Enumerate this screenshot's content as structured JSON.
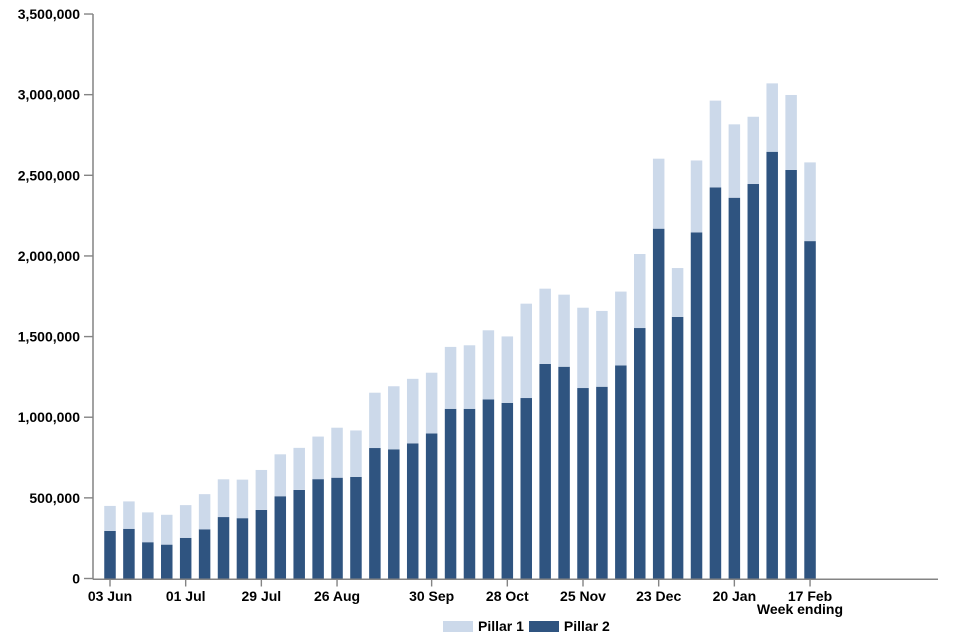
{
  "chart_data": {
    "type": "bar",
    "stacked": true,
    "title": "",
    "xlabel": "Week ending",
    "ylabel": "",
    "ylim": [
      0,
      3500000
    ],
    "y_tick_interval": 500000,
    "y_tick_labels": [
      "0",
      "500,000",
      "1,000,000",
      "1,500,000",
      "2,000,000",
      "2,500,000",
      "3,000,000",
      "3,500,000"
    ],
    "bar_count": 38,
    "x_tick_labels": [
      {
        "bar_index": 0,
        "label": "03 Jun"
      },
      {
        "bar_index": 4,
        "label": "01 Jul"
      },
      {
        "bar_index": 8,
        "label": "29 Jul"
      },
      {
        "bar_index": 12,
        "label": "26 Aug"
      },
      {
        "bar_index": 17,
        "label": "30 Sep"
      },
      {
        "bar_index": 21,
        "label": "28 Oct"
      },
      {
        "bar_index": 25,
        "label": "25 Nov"
      },
      {
        "bar_index": 29,
        "label": "23 Dec"
      },
      {
        "bar_index": 33,
        "label": "20 Jan"
      },
      {
        "bar_index": 37,
        "label": "17 Feb"
      }
    ],
    "stack_order_bottom_to_top": [
      "Pillar 2",
      "Pillar 1"
    ],
    "series": [
      {
        "name": "Pillar 1",
        "color": "#ccd9ea",
        "values": [
          155000,
          170000,
          185000,
          185000,
          203000,
          218000,
          234000,
          239000,
          248000,
          260000,
          261000,
          264000,
          310000,
          288000,
          343000,
          391000,
          400000,
          377000,
          384000,
          394000,
          429000,
          412000,
          585000,
          467000,
          447000,
          498000,
          470000,
          458000,
          459000,
          434000,
          303000,
          446000,
          538000,
          455000,
          417000,
          424000,
          465000,
          488000
        ]
      },
      {
        "name": "Pillar 2",
        "color": "#2f5480",
        "values": [
          295000,
          308000,
          225000,
          210000,
          252000,
          305000,
          381000,
          374000,
          425000,
          510000,
          549000,
          616000,
          625000,
          630000,
          809000,
          801000,
          838000,
          899000,
          1052000,
          1052000,
          1110000,
          1089000,
          1119000,
          1330000,
          1313000,
          1181000,
          1189000,
          1321000,
          1553000,
          2169000,
          1622000,
          2146000,
          2425000,
          2361000,
          2446000,
          2646000,
          2533000,
          2092000
        ]
      }
    ],
    "legend_position": "bottom-center",
    "grid": "off",
    "axis_color": "#848484",
    "text_color": "#000000"
  }
}
